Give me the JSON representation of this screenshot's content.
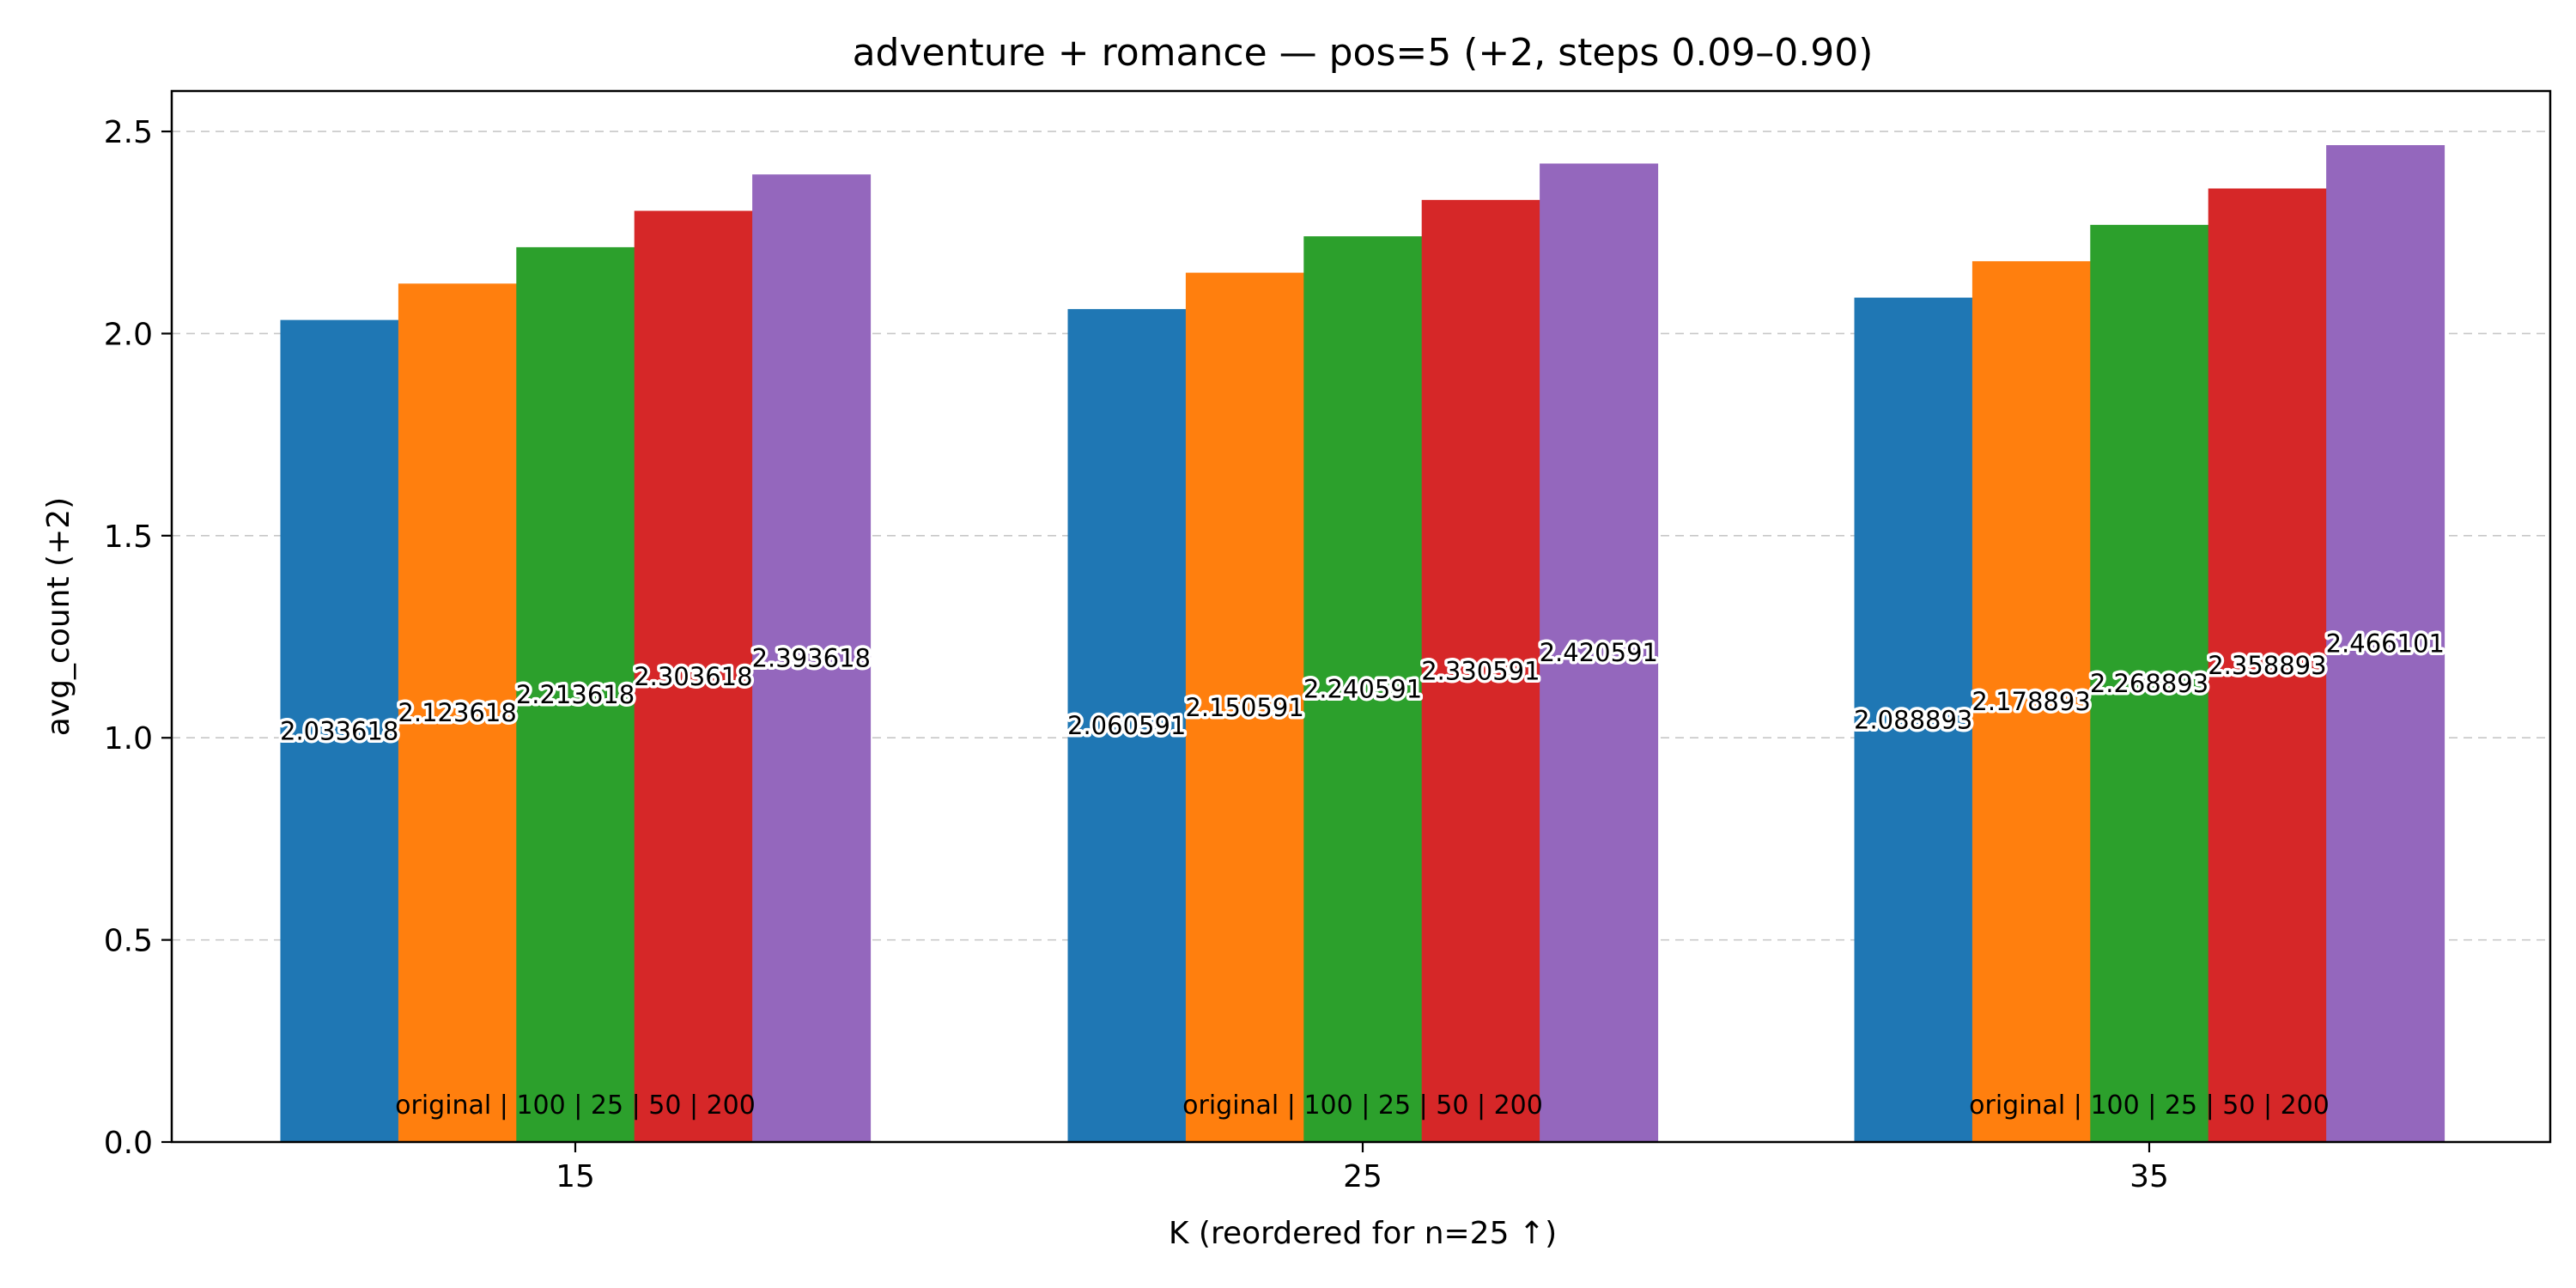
{
  "chart_data": {
    "type": "bar",
    "title": "adventure + romance — pos=5 (+2, steps 0.09–0.90)",
    "xlabel": "K (reordered for n=25 ↑)",
    "ylabel": "avg_count (+2)",
    "categories": [
      "15",
      "25",
      "35"
    ],
    "ylim": [
      0,
      2.6
    ],
    "yticks": [
      "0.0",
      "0.5",
      "1.0",
      "1.5",
      "2.0",
      "2.5"
    ],
    "grid": "horizontal dashed",
    "legend": "none",
    "group_note": "original | 100 | 25 | 50 | 200",
    "series": [
      {
        "color": "#1f77b4",
        "values": [
          2.033618,
          2.060591,
          2.088893
        ],
        "labels": [
          "2.033618",
          "2.060591",
          "2.088893"
        ]
      },
      {
        "color": "#ff7f0e",
        "values": [
          2.123618,
          2.150591,
          2.178893
        ],
        "labels": [
          "2.123618",
          "2.150591",
          "2.178893"
        ]
      },
      {
        "color": "#2ca02c",
        "values": [
          2.213618,
          2.240591,
          2.268893
        ],
        "labels": [
          "2.213618",
          "2.240591",
          "2.268893"
        ]
      },
      {
        "color": "#d62728",
        "values": [
          2.303618,
          2.330591,
          2.358893
        ],
        "labels": [
          "2.303618",
          "2.330591",
          "2.358893"
        ]
      },
      {
        "color": "#9467bd",
        "values": [
          2.393618,
          2.420591,
          2.466101
        ],
        "labels": [
          "2.393618",
          "2.420591",
          "2.466101"
        ]
      }
    ]
  }
}
